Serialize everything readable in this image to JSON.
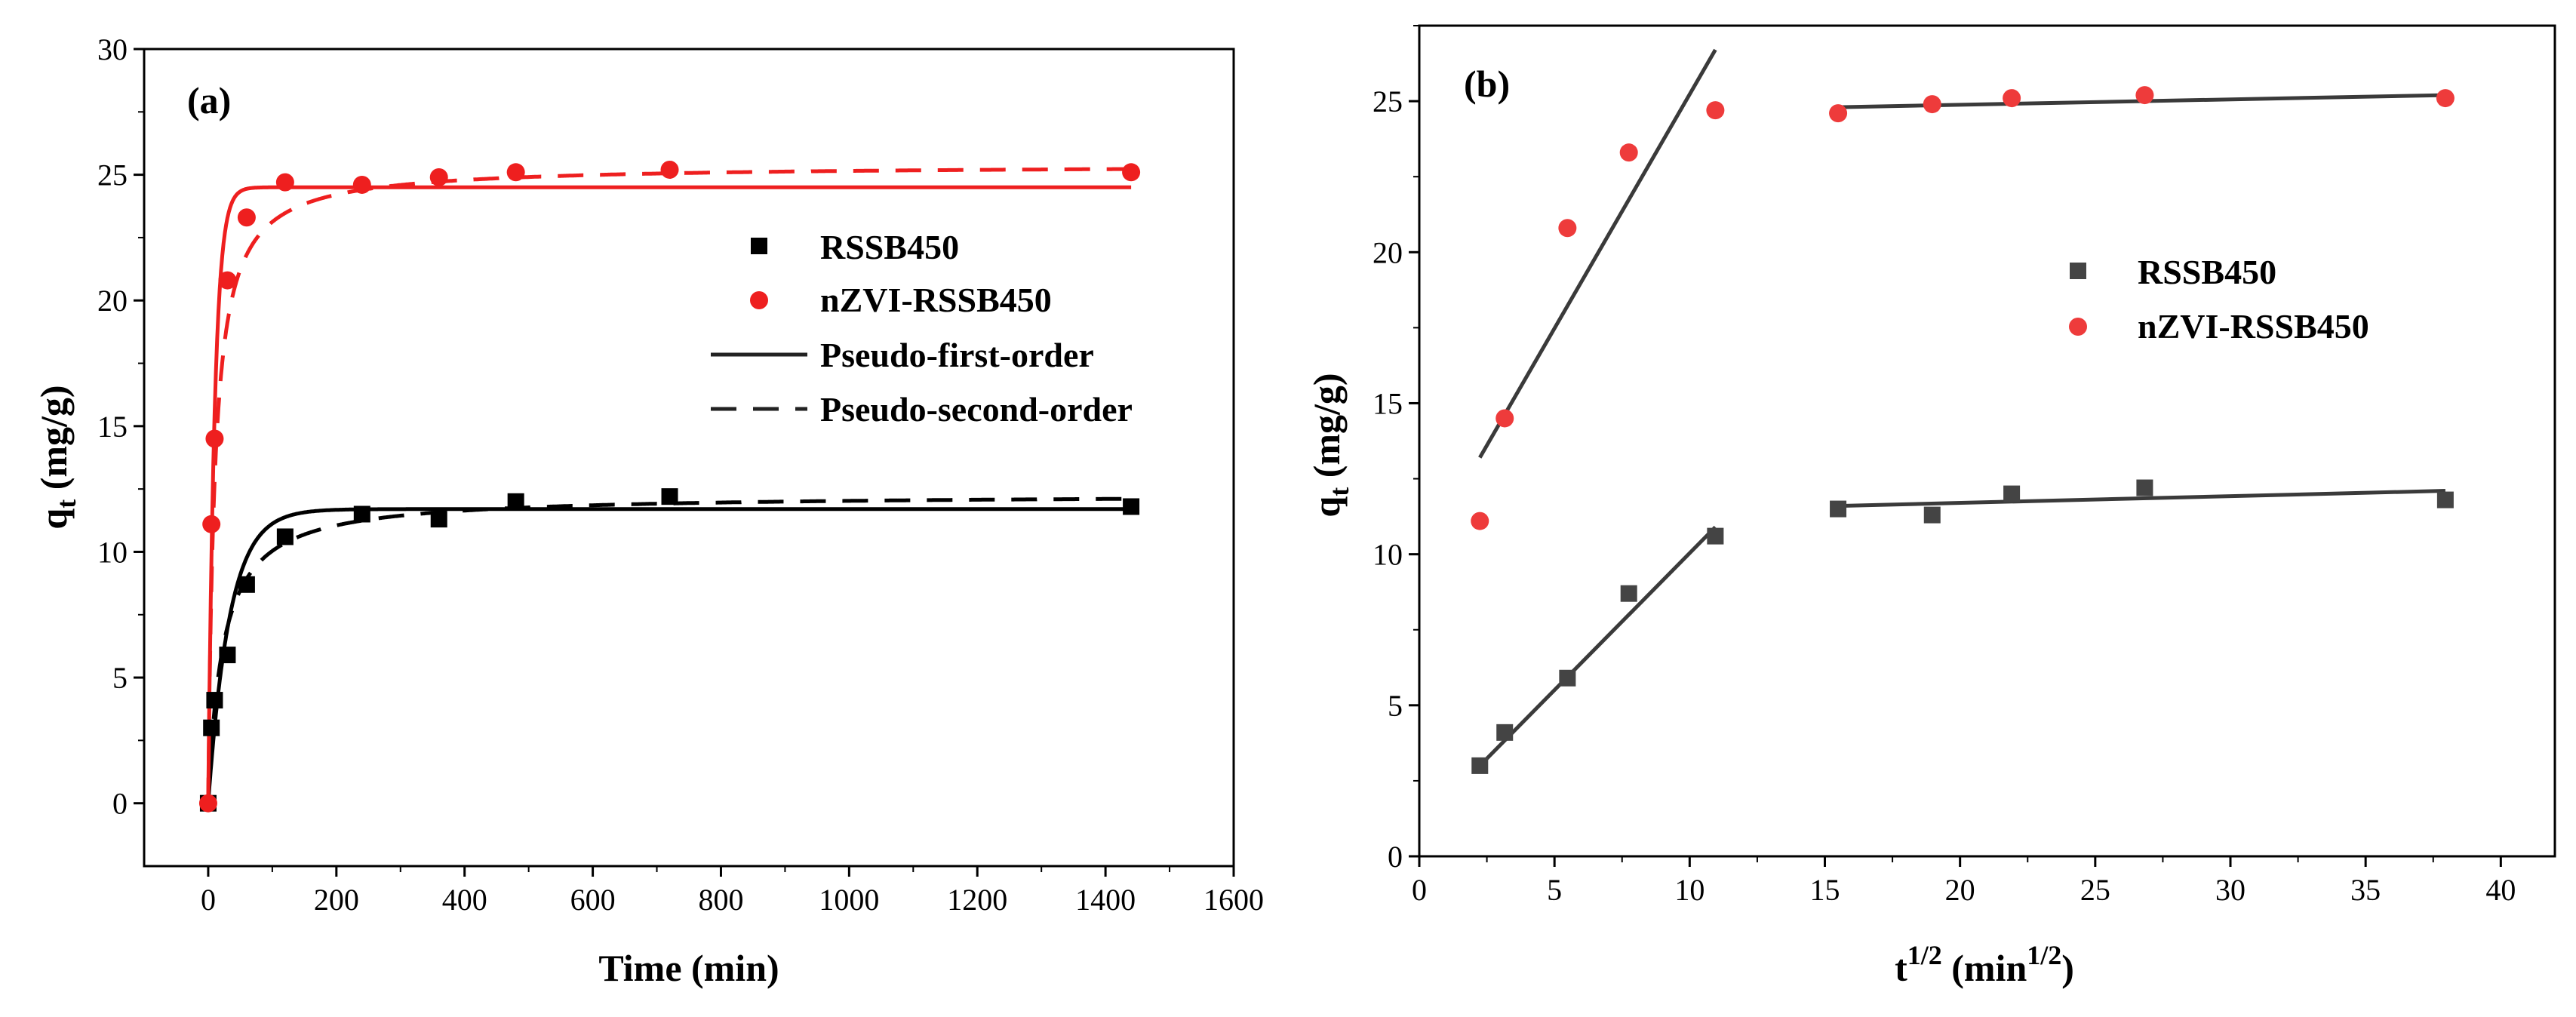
{
  "colors": {
    "rssb": "#000000",
    "nzvi": "#ee1f1f",
    "rssb_b": "#444444",
    "nzvi_b": "#ee3b3b"
  },
  "chart_data": [
    {
      "type": "scatter",
      "panel_label": "(a)",
      "xlabel": "Time (min)",
      "ylabel_main": "q",
      "ylabel_sub": "t",
      "ylabel_unit": " (mg/g)",
      "xlim": [
        -100,
        1600
      ],
      "ylim": [
        -2.5,
        30
      ],
      "xticks": [
        0,
        200,
        400,
        600,
        800,
        1000,
        1200,
        1400,
        1600
      ],
      "yticks": [
        0,
        5,
        10,
        15,
        20,
        25,
        30
      ],
      "x_tick_labels": [
        "0",
        "200",
        "400",
        "600",
        "800",
        "1000",
        "1200",
        "1400",
        "1600"
      ],
      "y_tick_labels": [
        "0",
        "5",
        "10",
        "15",
        "20",
        "25",
        "30"
      ],
      "x": [
        0,
        5,
        10,
        30,
        60,
        120,
        240,
        360,
        480,
        720,
        1440
      ],
      "series": [
        {
          "name": "RSSB450",
          "marker": "square",
          "color_key": "rssb",
          "values": [
            0,
            3.0,
            4.1,
            5.9,
            8.7,
            10.6,
            11.5,
            11.3,
            12.0,
            12.2,
            11.8
          ],
          "pfo": {
            "qe": 11.7,
            "k1": 0.03
          },
          "pso": {
            "qe": 12.3,
            "k2": 0.0036
          }
        },
        {
          "name": "nZVI-RSSB450",
          "marker": "circle",
          "color_key": "nzvi",
          "values": [
            0,
            11.1,
            14.5,
            20.8,
            23.3,
            24.7,
            24.6,
            24.9,
            25.1,
            25.2,
            25.1
          ],
          "pfo": {
            "qe": 24.5,
            "k1": 0.1
          },
          "pso": {
            "qe": 25.4,
            "k2": 0.004
          }
        }
      ],
      "legend": [
        "RSSB450",
        "nZVI-RSSB450",
        "Pseudo-first-order",
        "Pseudo-second-order"
      ]
    },
    {
      "type": "scatter",
      "panel_label": "(b)",
      "xlabel_main": "t",
      "xlabel_sup": "1/2",
      "xlabel_unit_main": " (min",
      "xlabel_unit_sup": "1/2",
      "xlabel_unit_close": ")",
      "ylabel_main": "q",
      "ylabel_sub": "t",
      "ylabel_unit": " (mg/g)",
      "xlim": [
        0,
        42
      ],
      "ylim": [
        0,
        27.5
      ],
      "xticks": [
        0,
        5,
        10,
        15,
        20,
        25,
        30,
        35,
        40
      ],
      "yticks": [
        0,
        5,
        10,
        15,
        20,
        25
      ],
      "x_tick_labels": [
        "0",
        "5",
        "10",
        "15",
        "20",
        "25",
        "30",
        "35",
        "40"
      ],
      "y_tick_labels": [
        "0",
        "5",
        "10",
        "15",
        "20",
        "25"
      ],
      "x": [
        2.24,
        3.16,
        5.48,
        7.75,
        10.95,
        15.49,
        18.97,
        21.91,
        26.83,
        37.95
      ],
      "series": [
        {
          "name": "RSSB450",
          "marker": "square",
          "color_key": "rssb_b",
          "values": [
            3.0,
            4.1,
            5.9,
            8.7,
            10.6,
            11.5,
            11.3,
            12.0,
            12.2,
            11.8
          ]
        },
        {
          "name": "nZVI-RSSB450",
          "marker": "circle",
          "color_key": "nzvi_b",
          "values": [
            11.1,
            14.5,
            20.8,
            23.3,
            24.7,
            24.6,
            24.9,
            25.1,
            25.2,
            25.1
          ]
        }
      ],
      "fit_lines": [
        {
          "series": "nZVI-RSSB450",
          "x": [
            2.24,
            10.95
          ],
          "y": [
            13.2,
            26.7
          ]
        },
        {
          "series": "RSSB450",
          "x": [
            2.24,
            10.95
          ],
          "y": [
            3.0,
            10.9
          ]
        },
        {
          "series": "nZVI-RSSB450",
          "x": [
            15.49,
            37.95
          ],
          "y": [
            24.8,
            25.2
          ]
        },
        {
          "series": "RSSB450",
          "x": [
            15.49,
            37.95
          ],
          "y": [
            11.6,
            12.1
          ]
        }
      ],
      "legend": [
        "RSSB450",
        "nZVI-RSSB450"
      ]
    }
  ]
}
